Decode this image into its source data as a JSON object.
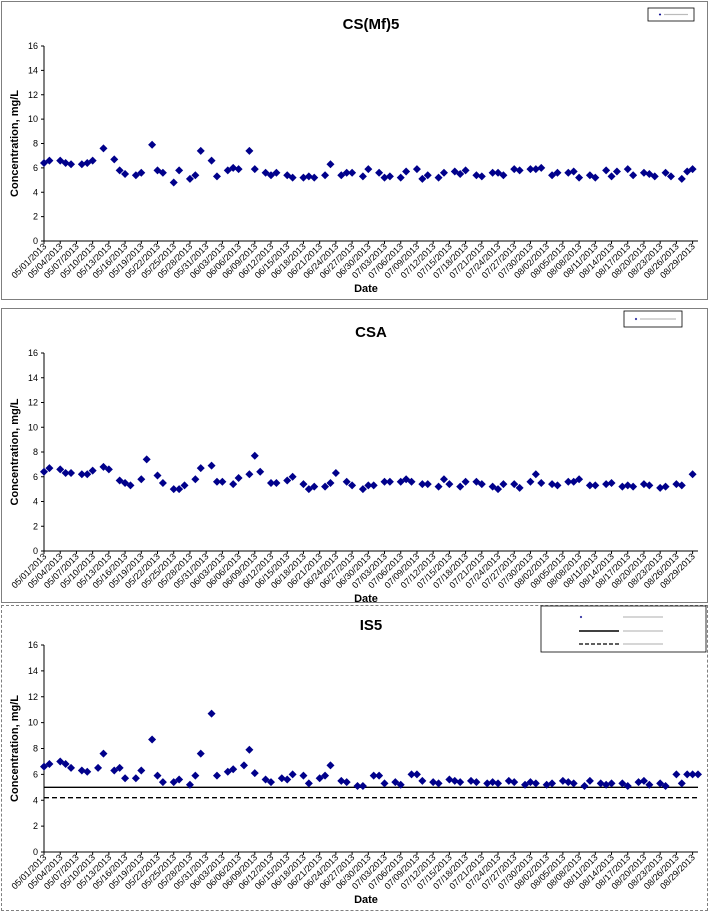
{
  "chart_data": [
    {
      "type": "scatter",
      "title": "CS(Mf)5",
      "xlabel": "Date",
      "ylabel": "Concentration, mg/L",
      "ylim": [
        0,
        16
      ],
      "yticks": [
        0,
        2,
        4,
        6,
        8,
        10,
        12,
        14,
        16
      ],
      "xlim": [
        "05/01/2013",
        "08/30/2013"
      ],
      "xticks": [
        "05/01/2013",
        "05/04/2013",
        "05/07/2013",
        "05/10/2013",
        "05/13/2013",
        "05/16/2013",
        "05/19/2013",
        "05/22/2013",
        "05/25/2013",
        "05/28/2013",
        "05/31/2013",
        "06/03/2013",
        "06/06/2013",
        "06/09/2013",
        "06/12/2013",
        "06/15/2013",
        "06/18/2013",
        "06/21/2013",
        "06/24/2013",
        "06/27/2013",
        "06/30/2013",
        "07/03/2013",
        "07/06/2013",
        "07/09/2013",
        "07/12/2013",
        "07/15/2013",
        "07/18/2013",
        "07/21/2013",
        "07/24/2013",
        "07/27/2013",
        "07/30/2013",
        "08/02/2013",
        "08/05/2013",
        "08/08/2013",
        "08/11/2013",
        "08/14/2013",
        "08/17/2013",
        "08/20/2013",
        "08/23/2013",
        "08/26/2013",
        "08/29/2013"
      ],
      "grid": false,
      "legend": "top-right",
      "color": "#00008b",
      "series": [
        {
          "marker": "diamond",
          "x": [
            "05/01/2013",
            "05/02/2013",
            "05/04/2013",
            "05/05/2013",
            "05/06/2013",
            "05/08/2013",
            "05/09/2013",
            "05/10/2013",
            "05/12/2013",
            "05/14/2013",
            "05/15/2013",
            "05/16/2013",
            "05/18/2013",
            "05/19/2013",
            "05/21/2013",
            "05/22/2013",
            "05/23/2013",
            "05/25/2013",
            "05/26/2013",
            "05/28/2013",
            "05/29/2013",
            "05/30/2013",
            "06/01/2013",
            "06/02/2013",
            "06/04/2013",
            "06/05/2013",
            "06/06/2013",
            "06/08/2013",
            "06/09/2013",
            "06/11/2013",
            "06/12/2013",
            "06/13/2013",
            "06/15/2013",
            "06/16/2013",
            "06/18/2013",
            "06/19/2013",
            "06/20/2013",
            "06/22/2013",
            "06/23/2013",
            "06/25/2013",
            "06/26/2013",
            "06/27/2013",
            "06/29/2013",
            "06/30/2013",
            "07/02/2013",
            "07/03/2013",
            "07/04/2013",
            "07/06/2013",
            "07/07/2013",
            "07/09/2013",
            "07/10/2013",
            "07/11/2013",
            "07/13/2013",
            "07/14/2013",
            "07/16/2013",
            "07/17/2013",
            "07/18/2013",
            "07/20/2013",
            "07/21/2013",
            "07/23/2013",
            "07/24/2013",
            "07/25/2013",
            "07/27/2013",
            "07/28/2013",
            "07/30/2013",
            "07/31/2013",
            "08/01/2013",
            "08/03/2013",
            "08/04/2013",
            "08/06/2013",
            "08/07/2013",
            "08/08/2013",
            "08/10/2013",
            "08/11/2013",
            "08/13/2013",
            "08/14/2013",
            "08/15/2013",
            "08/17/2013",
            "08/18/2013",
            "08/20/2013",
            "08/21/2013",
            "08/22/2013",
            "08/24/2013",
            "08/25/2013",
            "08/27/2013",
            "08/28/2013",
            "08/29/2013"
          ],
          "y": [
            6.4,
            6.6,
            6.6,
            6.4,
            6.3,
            6.3,
            6.4,
            6.6,
            7.6,
            6.7,
            5.8,
            5.5,
            5.4,
            5.6,
            7.9,
            5.8,
            5.6,
            4.8,
            5.8,
            5.1,
            5.4,
            7.4,
            6.6,
            5.3,
            5.8,
            6.0,
            5.9,
            7.4,
            5.9,
            5.6,
            5.4,
            5.6,
            5.4,
            5.2,
            5.2,
            5.3,
            5.2,
            5.4,
            6.3,
            5.4,
            5.6,
            5.6,
            5.3,
            5.9,
            5.6,
            5.2,
            5.3,
            5.2,
            5.7,
            5.9,
            5.1,
            5.4,
            5.2,
            5.6,
            5.7,
            5.5,
            5.8,
            5.4,
            5.3,
            5.6,
            5.6,
            5.4,
            5.9,
            5.8,
            5.9,
            5.9,
            6.0,
            5.4,
            5.6,
            5.6,
            5.7,
            5.2,
            5.4,
            5.2,
            5.8,
            5.3,
            5.7,
            5.9,
            5.4,
            5.6,
            5.5,
            5.3,
            5.6,
            5.3,
            5.1,
            5.7,
            5.9
          ]
        }
      ],
      "reference_lines": []
    },
    {
      "type": "scatter",
      "title": "CSA",
      "xlabel": "Date",
      "ylabel": "Concentration, mg/L",
      "ylim": [
        0,
        16
      ],
      "yticks": [
        0,
        2,
        4,
        6,
        8,
        10,
        12,
        14,
        16
      ],
      "xlim": [
        "05/01/2013",
        "08/30/2013"
      ],
      "xticks": [
        "05/01/2013",
        "05/04/2013",
        "05/07/2013",
        "05/10/2013",
        "05/13/2013",
        "05/16/2013",
        "05/19/2013",
        "05/22/2013",
        "05/25/2013",
        "05/28/2013",
        "05/31/2013",
        "06/03/2013",
        "06/06/2013",
        "06/09/2013",
        "06/12/2013",
        "06/15/2013",
        "06/18/2013",
        "06/21/2013",
        "06/24/2013",
        "06/27/2013",
        "06/30/2013",
        "07/03/2013",
        "07/06/2013",
        "07/09/2013",
        "07/12/2013",
        "07/15/2013",
        "07/18/2013",
        "07/21/2013",
        "07/24/2013",
        "07/27/2013",
        "07/30/2013",
        "08/02/2013",
        "08/05/2013",
        "08/08/2013",
        "08/11/2013",
        "08/14/2013",
        "08/17/2013",
        "08/20/2013",
        "08/23/2013",
        "08/26/2013",
        "08/29/2013"
      ],
      "grid": false,
      "legend": "top-right",
      "color": "#00008b",
      "series": [
        {
          "marker": "diamond",
          "x": [
            "05/01/2013",
            "05/02/2013",
            "05/04/2013",
            "05/05/2013",
            "05/06/2013",
            "05/08/2013",
            "05/09/2013",
            "05/10/2013",
            "05/12/2013",
            "05/13/2013",
            "05/15/2013",
            "05/16/2013",
            "05/17/2013",
            "05/19/2013",
            "05/20/2013",
            "05/22/2013",
            "05/23/2013",
            "05/25/2013",
            "05/26/2013",
            "05/27/2013",
            "05/29/2013",
            "05/30/2013",
            "06/01/2013",
            "06/02/2013",
            "06/03/2013",
            "06/05/2013",
            "06/06/2013",
            "06/08/2013",
            "06/09/2013",
            "06/10/2013",
            "06/12/2013",
            "06/13/2013",
            "06/15/2013",
            "06/16/2013",
            "06/18/2013",
            "06/19/2013",
            "06/20/2013",
            "06/22/2013",
            "06/23/2013",
            "06/24/2013",
            "06/26/2013",
            "06/27/2013",
            "06/29/2013",
            "06/30/2013",
            "07/01/2013",
            "07/03/2013",
            "07/04/2013",
            "07/06/2013",
            "07/07/2013",
            "07/08/2013",
            "07/10/2013",
            "07/11/2013",
            "07/13/2013",
            "07/14/2013",
            "07/15/2013",
            "07/17/2013",
            "07/18/2013",
            "07/20/2013",
            "07/21/2013",
            "07/23/2013",
            "07/24/2013",
            "07/25/2013",
            "07/27/2013",
            "07/28/2013",
            "07/30/2013",
            "07/31/2013",
            "08/01/2013",
            "08/03/2013",
            "08/04/2013",
            "08/06/2013",
            "08/07/2013",
            "08/08/2013",
            "08/10/2013",
            "08/11/2013",
            "08/13/2013",
            "08/14/2013",
            "08/16/2013",
            "08/17/2013",
            "08/18/2013",
            "08/20/2013",
            "08/21/2013",
            "08/23/2013",
            "08/24/2013",
            "08/26/2013",
            "08/27/2013",
            "08/29/2013"
          ],
          "y": [
            6.4,
            6.7,
            6.6,
            6.3,
            6.3,
            6.2,
            6.2,
            6.5,
            6.8,
            6.6,
            5.7,
            5.5,
            5.3,
            5.8,
            7.4,
            6.1,
            5.5,
            5.0,
            5.0,
            5.3,
            5.8,
            6.7,
            6.9,
            5.6,
            5.6,
            5.4,
            5.9,
            6.2,
            7.7,
            6.4,
            5.5,
            5.5,
            5.7,
            6.0,
            5.4,
            5.0,
            5.2,
            5.2,
            5.5,
            6.3,
            5.6,
            5.3,
            5.0,
            5.3,
            5.3,
            5.6,
            5.6,
            5.6,
            5.8,
            5.6,
            5.4,
            5.4,
            5.2,
            5.8,
            5.4,
            5.2,
            5.6,
            5.6,
            5.4,
            5.2,
            5.0,
            5.4,
            5.4,
            5.1,
            5.6,
            6.2,
            5.5,
            5.4,
            5.3,
            5.6,
            5.6,
            5.8,
            5.3,
            5.3,
            5.4,
            5.5,
            5.2,
            5.3,
            5.2,
            5.4,
            5.3,
            5.1,
            5.2,
            5.4,
            5.3,
            6.2
          ]
        }
      ],
      "reference_lines": []
    },
    {
      "type": "scatter",
      "title": "IS5",
      "xlabel": "Date",
      "ylabel": "Concentration, mg/L",
      "ylim": [
        0,
        16
      ],
      "yticks": [
        0,
        2,
        4,
        6,
        8,
        10,
        12,
        14,
        16
      ],
      "xlim": [
        "05/01/2013",
        "08/30/2013"
      ],
      "xticks": [
        "05/01/2013",
        "05/04/2013",
        "05/07/2013",
        "05/10/2013",
        "05/13/2013",
        "05/16/2013",
        "05/19/2013",
        "05/22/2013",
        "05/25/2013",
        "05/28/2013",
        "05/31/2013",
        "06/03/2013",
        "06/06/2013",
        "06/09/2013",
        "06/12/2013",
        "06/15/2013",
        "06/18/2013",
        "06/21/2013",
        "06/24/2013",
        "06/27/2013",
        "06/30/2013",
        "07/03/2013",
        "07/06/2013",
        "07/09/2013",
        "07/12/2013",
        "07/15/2013",
        "07/18/2013",
        "07/21/2013",
        "07/24/2013",
        "07/27/2013",
        "07/30/2013",
        "08/02/2013",
        "08/05/2013",
        "08/08/2013",
        "08/11/2013",
        "08/14/2013",
        "08/17/2013",
        "08/20/2013",
        "08/23/2013",
        "08/26/2013",
        "08/29/2013"
      ],
      "grid": false,
      "legend": "top-right",
      "color": "#00008b",
      "series": [
        {
          "marker": "diamond",
          "x": [
            "05/01/2013",
            "05/02/2013",
            "05/04/2013",
            "05/05/2013",
            "05/06/2013",
            "05/08/2013",
            "05/09/2013",
            "05/11/2013",
            "05/12/2013",
            "05/14/2013",
            "05/15/2013",
            "05/16/2013",
            "05/18/2013",
            "05/19/2013",
            "05/21/2013",
            "05/22/2013",
            "05/23/2013",
            "05/25/2013",
            "05/26/2013",
            "05/28/2013",
            "05/29/2013",
            "05/30/2013",
            "06/01/2013",
            "06/02/2013",
            "06/04/2013",
            "06/05/2013",
            "06/07/2013",
            "06/08/2013",
            "06/09/2013",
            "06/11/2013",
            "06/12/2013",
            "06/14/2013",
            "06/15/2013",
            "06/16/2013",
            "06/18/2013",
            "06/19/2013",
            "06/21/2013",
            "06/22/2013",
            "06/23/2013",
            "06/25/2013",
            "06/26/2013",
            "06/28/2013",
            "06/29/2013",
            "07/01/2013",
            "07/02/2013",
            "07/03/2013",
            "07/05/2013",
            "07/06/2013",
            "07/08/2013",
            "07/09/2013",
            "07/10/2013",
            "07/12/2013",
            "07/13/2013",
            "07/15/2013",
            "07/16/2013",
            "07/17/2013",
            "07/19/2013",
            "07/20/2013",
            "07/22/2013",
            "07/23/2013",
            "07/24/2013",
            "07/26/2013",
            "07/27/2013",
            "07/29/2013",
            "07/30/2013",
            "07/31/2013",
            "08/02/2013",
            "08/03/2013",
            "08/05/2013",
            "08/06/2013",
            "08/07/2013",
            "08/09/2013",
            "08/10/2013",
            "08/12/2013",
            "08/13/2013",
            "08/14/2013",
            "08/16/2013",
            "08/17/2013",
            "08/19/2013",
            "08/20/2013",
            "08/21/2013",
            "08/23/2013",
            "08/24/2013",
            "08/26/2013",
            "08/27/2013",
            "08/28/2013"
          ],
          "y": [
            6.6,
            6.8,
            7.0,
            6.8,
            6.5,
            6.3,
            6.2,
            6.5,
            7.6,
            6.3,
            6.5,
            5.7,
            5.7,
            6.3,
            8.7,
            5.9,
            5.4,
            5.4,
            5.6,
            5.2,
            5.9,
            7.6,
            10.7,
            5.9,
            6.2,
            6.4,
            6.7,
            7.9,
            6.1,
            5.6,
            5.4,
            5.7,
            5.6,
            6.0,
            5.9,
            5.3,
            5.7,
            5.9,
            6.7,
            5.5,
            5.4,
            5.1,
            5.1,
            5.9,
            5.9,
            5.3,
            5.4,
            5.2,
            6.0,
            6.0,
            5.5,
            5.4,
            5.3,
            5.6,
            5.5,
            5.4,
            5.5,
            5.4,
            5.3,
            5.4,
            5.3,
            5.5,
            5.4,
            5.2,
            5.4,
            5.3,
            5.2,
            5.3,
            5.5,
            5.4,
            5.3,
            5.1,
            5.5,
            5.3,
            5.2,
            5.3,
            5.3,
            5.1,
            5.4,
            5.5,
            5.2,
            5.3,
            5.1,
            6.0,
            5.3,
            6.0
          ],
          "x_extra": [
            "08/29/2013",
            "08/30/2013"
          ],
          "y_extra": [
            6.0,
            6.0
          ]
        }
      ],
      "reference_lines": [
        {
          "value": 5.0,
          "style": "solid"
        },
        {
          "value": 4.2,
          "style": "dashed"
        }
      ]
    }
  ]
}
